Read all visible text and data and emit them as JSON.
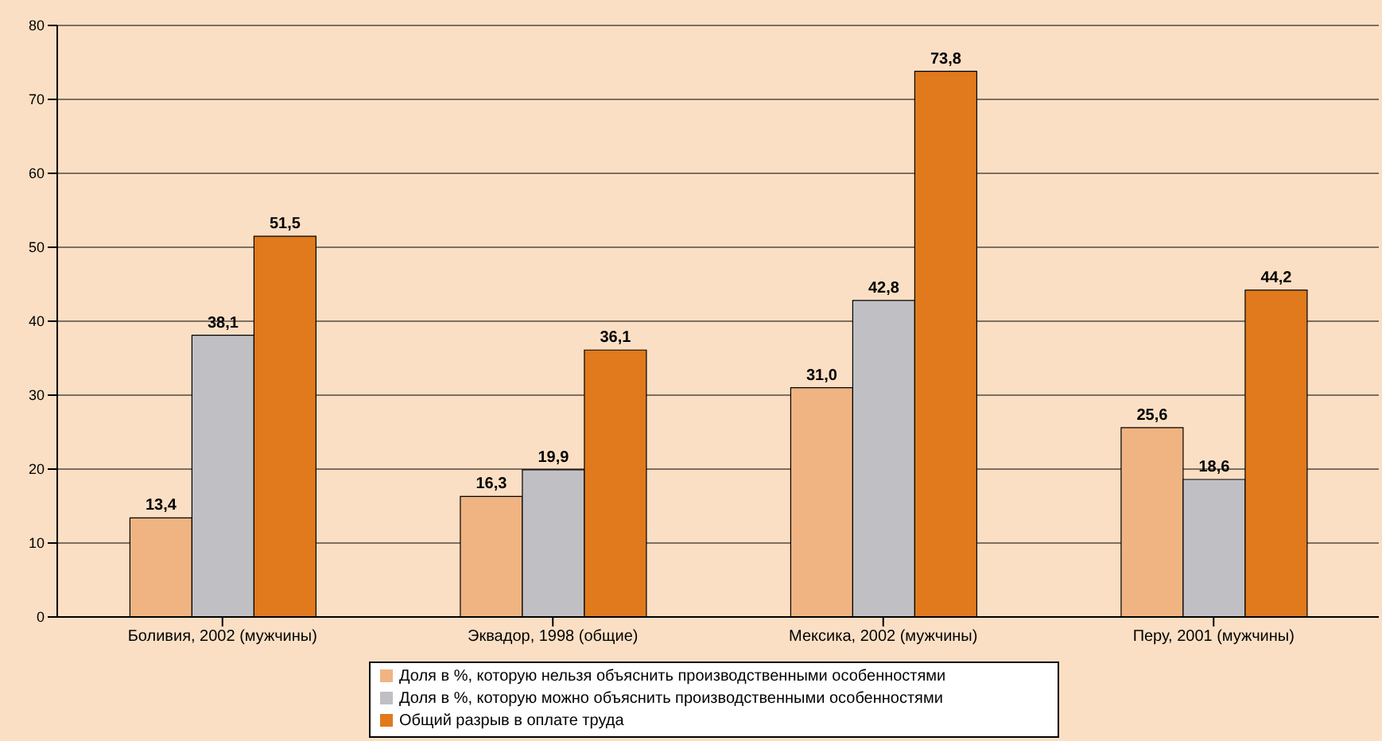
{
  "chart_data": {
    "type": "bar",
    "categories": [
      "Боливия, 2002 (мужчины)",
      "Эквадор, 1998 (общие)",
      "Мексика, 2002 (мужчины)",
      "Перу, 2001 (мужчины)"
    ],
    "series": [
      {
        "name": "Доля в %, которую нельзя объяснить производственными особенностями",
        "color": "#f0b482",
        "values": [
          13.4,
          16.3,
          31.0,
          25.6
        ],
        "value_labels": [
          "13,4",
          "16,3",
          "31,0",
          "25,6"
        ]
      },
      {
        "name": "Доля в %, которую можно объяснить производственными особенностями",
        "color": "#c0c0c4",
        "values": [
          38.1,
          19.9,
          42.8,
          18.6
        ],
        "value_labels": [
          "38,1",
          "19,9",
          "42,8",
          "18,6"
        ]
      },
      {
        "name": "Общий разрыв в оплате труда",
        "color": "#e07a1c",
        "values": [
          51.5,
          36.1,
          73.8,
          44.2
        ],
        "value_labels": [
          "51,5",
          "36,1",
          "73,8",
          "44,2"
        ]
      }
    ],
    "ylim": [
      0,
      80
    ],
    "yticks": [
      0,
      10,
      20,
      30,
      40,
      50,
      60,
      70,
      80
    ],
    "grid": "y",
    "legend": "bottom"
  }
}
